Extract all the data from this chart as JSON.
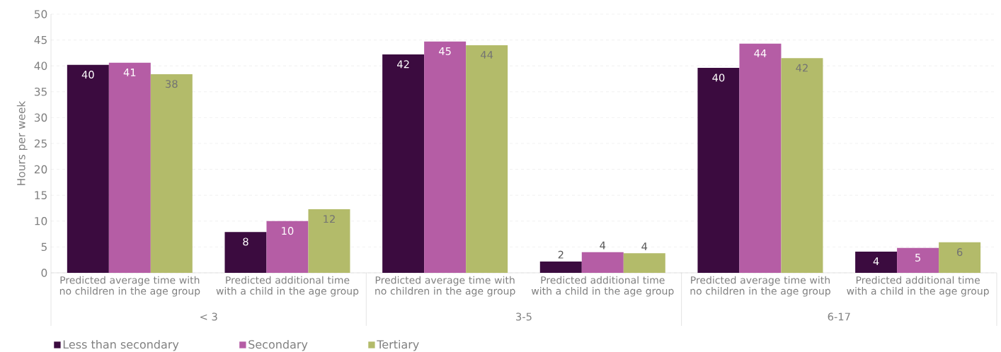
{
  "chart_data": {
    "type": "bar",
    "ylabel": "Hours per week",
    "categories": [
      "Predicted average time with no children in the age group",
      "Predicted additional time with a child in the age group",
      "Predicted average time with no children in the age group",
      "Predicted additional time with a child in the age group",
      "Predicted average time with no children in the age group",
      "Predicted additional time with a child in the age group"
    ],
    "annotations": [
      "< 3",
      "3-5",
      "6-17"
    ],
    "series": [
      {
        "name": "Less than secondary",
        "color": "#3b0b3f",
        "values": [
          40.2,
          7.9,
          42.2,
          2.2,
          39.6,
          4.1
        ],
        "value_labels": [
          "40",
          "8",
          "42",
          "2",
          "40",
          "4"
        ]
      },
      {
        "name": "Secondary",
        "color": "#b55da5",
        "values": [
          40.6,
          10.0,
          44.7,
          4.0,
          44.3,
          4.8
        ],
        "value_labels": [
          "41",
          "10",
          "45",
          "4",
          "44",
          "5"
        ]
      },
      {
        "name": "Tertiary",
        "color": "#b3bb6a",
        "values": [
          38.4,
          12.3,
          44.0,
          3.8,
          41.5,
          5.9
        ],
        "value_labels": [
          "38",
          "12",
          "44",
          "4",
          "42",
          "6"
        ]
      }
    ],
    "ylim": [
      0,
      50
    ],
    "yticks": [
      0,
      5,
      10,
      15,
      20,
      25,
      30,
      35,
      40,
      45,
      50
    ],
    "grid": "y",
    "legend": "bottom left"
  }
}
